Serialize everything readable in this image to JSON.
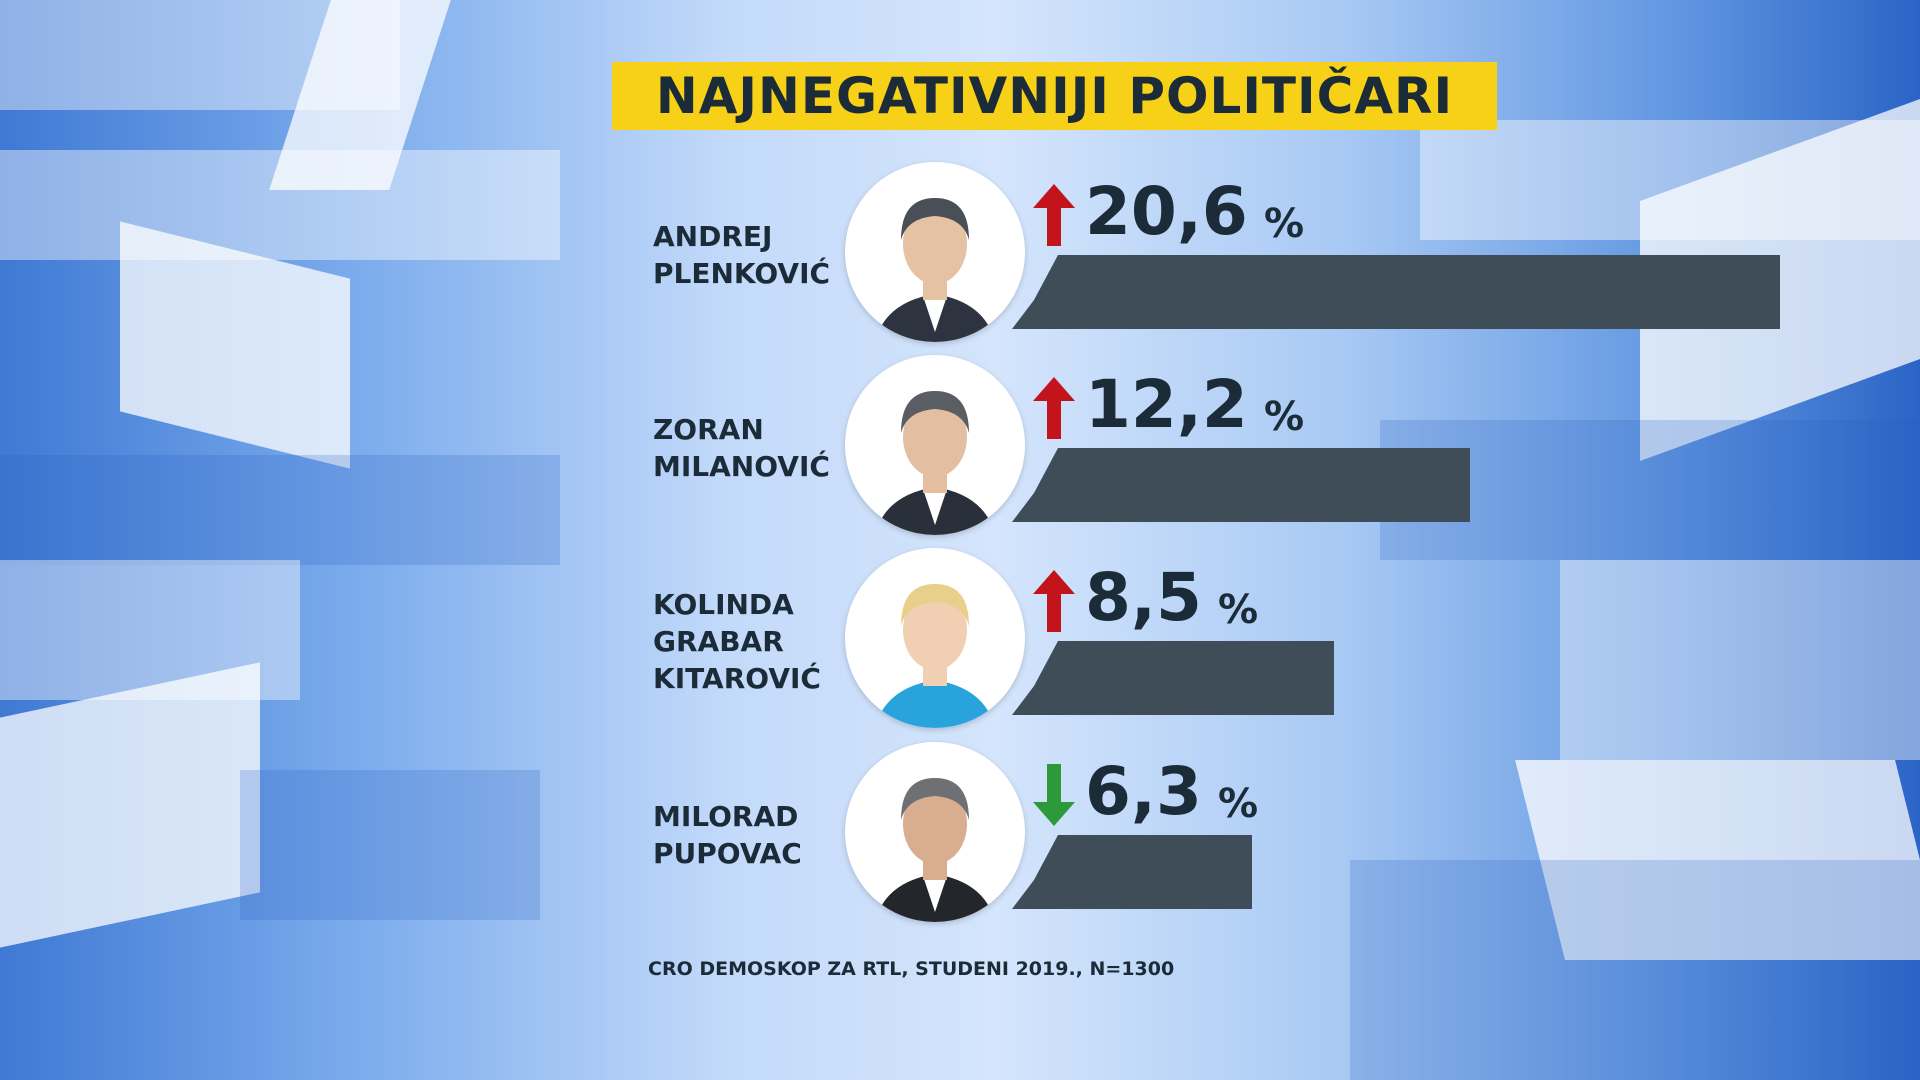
{
  "title": "NAJNEGATIVNIJI POLITIČARI",
  "source": "CRO DEMOSKOP ZA RTL, STUDENI 2019., N=1300",
  "colors": {
    "title_bg": "#f7d117",
    "bar": "#3e4d57",
    "up_arrow": "#c3141c",
    "down_arrow": "#2c9a3a",
    "text": "#1b2b38"
  },
  "chart_data": {
    "type": "bar",
    "orientation": "horizontal",
    "title": "NAJNEGATIVNIJI POLITIČARI",
    "unit": "%",
    "categories": [
      "ANDREJ PLENKOVIĆ",
      "ZORAN MILANOVIĆ",
      "KOLINDA GRABAR KITAROVIĆ",
      "MILORAD PUPOVAC"
    ],
    "values": [
      20.6,
      12.2,
      8.5,
      6.3
    ],
    "trend": [
      "up",
      "up",
      "up",
      "down"
    ],
    "grid": false,
    "legend": "none"
  },
  "rows": [
    {
      "name_lines": [
        "ANDREJ",
        "PLENKOVIĆ"
      ],
      "value_label": "20,6",
      "unit": "%",
      "trend_icon": "arrow-up-icon"
    },
    {
      "name_lines": [
        "ZORAN",
        "MILANOVIĆ"
      ],
      "value_label": "12,2",
      "unit": "%",
      "trend_icon": "arrow-up-icon"
    },
    {
      "name_lines": [
        "KOLINDA",
        "GRABAR",
        "KITAROVIĆ"
      ],
      "value_label": "8,5",
      "unit": "%",
      "trend_icon": "arrow-up-icon"
    },
    {
      "name_lines": [
        "MILORAD",
        "PUPOVAC"
      ],
      "value_label": "6,3",
      "unit": "%",
      "trend_icon": "arrow-down-icon"
    }
  ]
}
